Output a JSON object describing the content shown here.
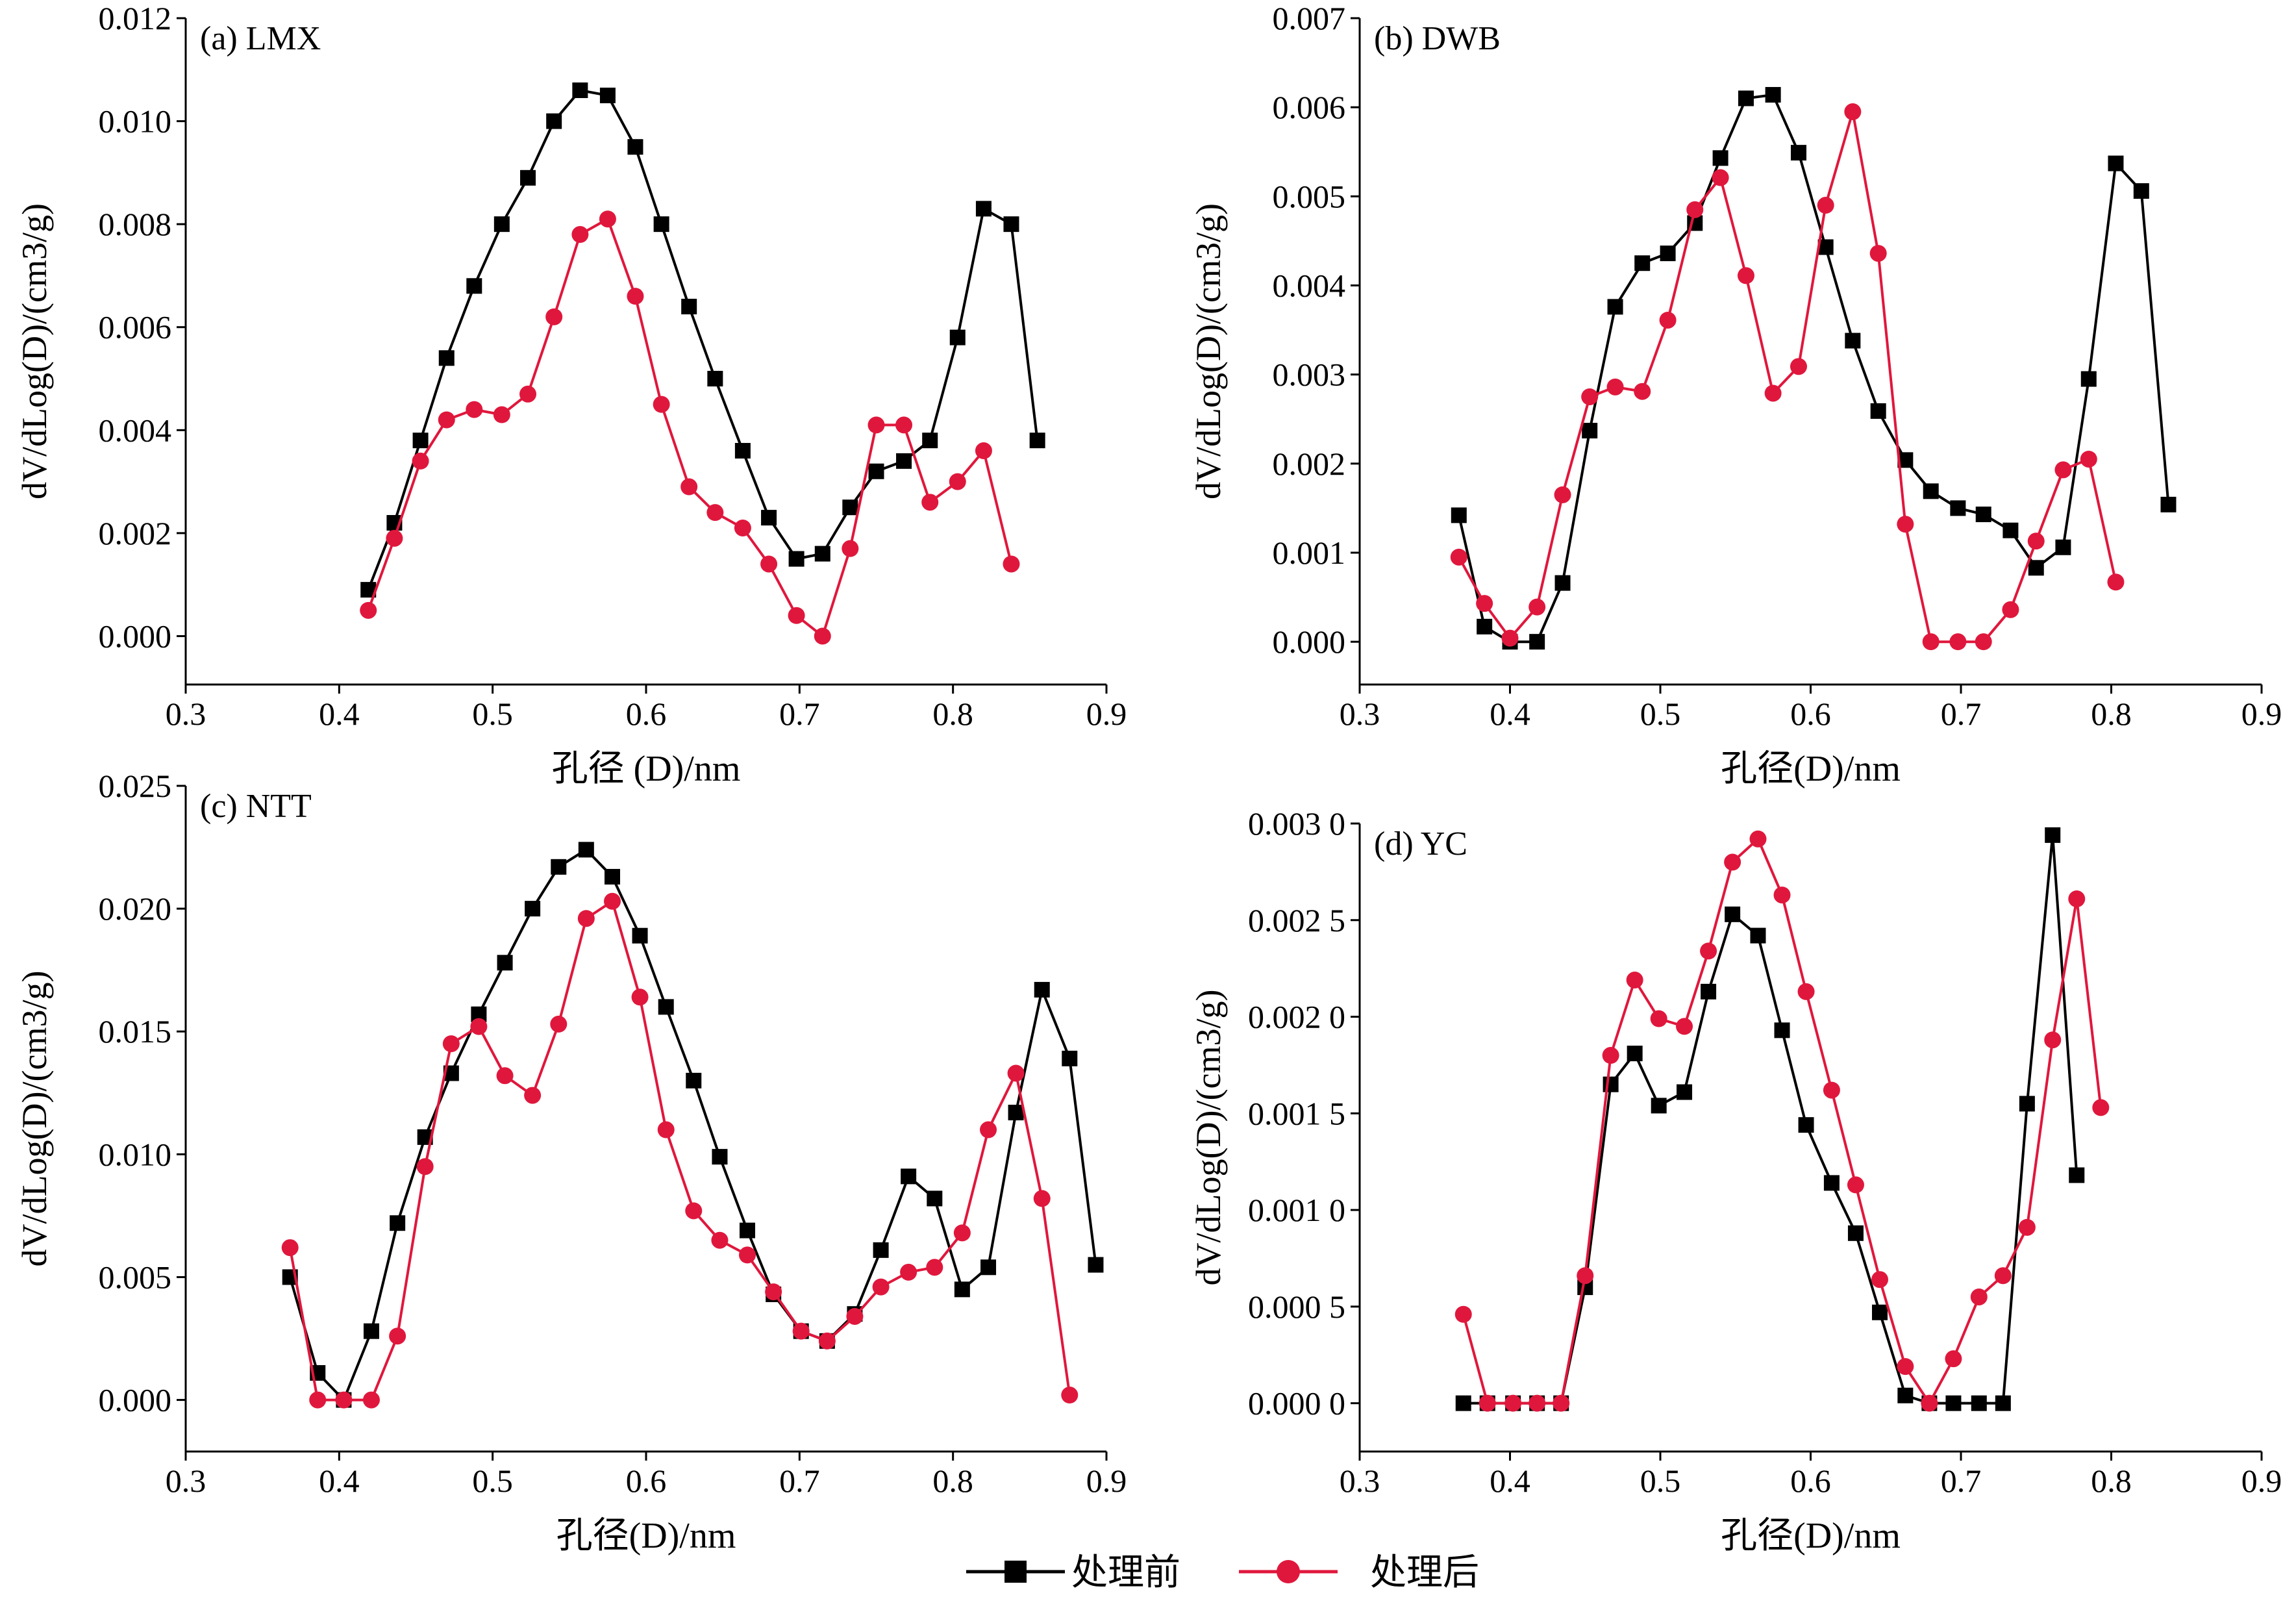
{
  "chart_data": [
    {
      "type": "line",
      "title": "(a) LMX",
      "xlabel": "孔径 (D)/nm",
      "ylabel": "dV/dLog(D)/(cm3/g)",
      "xlim": [
        0.3,
        0.9
      ],
      "ylim": [
        -0.00094,
        0.012
      ],
      "xticks": [
        "0.3",
        "0.4",
        "0.5",
        "0.6",
        "0.7",
        "0.8",
        "0.9"
      ],
      "yticks": [
        "0.000",
        "0.002",
        "0.004",
        "0.006",
        "0.008",
        "0.010",
        "0.012"
      ],
      "grid": false,
      "series": [
        {
          "name": "处理前",
          "color": "#000000",
          "marker": "square",
          "x": [
            0.419,
            0.436,
            0.453,
            0.47,
            0.488,
            0.506,
            0.523,
            0.54,
            0.557,
            0.575,
            0.593,
            0.61,
            0.628,
            0.645,
            0.663,
            0.68,
            0.698,
            0.715,
            0.733,
            0.75,
            0.768,
            0.785,
            0.803,
            0.82,
            0.838,
            0.855
          ],
          "y": [
            0.0009,
            0.0022,
            0.0038,
            0.0054,
            0.0068,
            0.008,
            0.0089,
            0.01,
            0.0106,
            0.0105,
            0.0095,
            0.008,
            0.0064,
            0.005,
            0.0036,
            0.0023,
            0.0015,
            0.0016,
            0.0025,
            0.0032,
            0.0034,
            0.0038,
            0.0058,
            0.0083,
            0.008,
            0.0038
          ]
        },
        {
          "name": "处理后",
          "color": "#e0173c",
          "marker": "circle",
          "x": [
            0.419,
            0.436,
            0.453,
            0.47,
            0.488,
            0.506,
            0.523,
            0.54,
            0.557,
            0.575,
            0.593,
            0.61,
            0.628,
            0.645,
            0.663,
            0.68,
            0.698,
            0.715,
            0.733,
            0.75,
            0.768,
            0.785,
            0.803,
            0.82,
            0.838
          ],
          "y": [
            0.0005,
            0.0019,
            0.0034,
            0.0042,
            0.0044,
            0.0043,
            0.0047,
            0.0062,
            0.0078,
            0.0081,
            0.0066,
            0.0045,
            0.0029,
            0.0024,
            0.0021,
            0.0014,
            0.0004,
            0.0,
            0.0017,
            0.0041,
            0.0041,
            0.0026,
            0.003,
            0.0036,
            0.0014
          ]
        }
      ]
    },
    {
      "type": "line",
      "title": "(b) DWB",
      "xlabel": "孔径(D)/nm",
      "ylabel": "dV/dLog(D)/(cm3/g)",
      "xlim": [
        0.3,
        0.9
      ],
      "ylim": [
        -0.00048,
        0.007
      ],
      "xticks": [
        "0.3",
        "0.4",
        "0.5",
        "0.6",
        "0.7",
        "0.8",
        "0.9"
      ],
      "yticks": [
        "0.000",
        "0.001",
        "0.002",
        "0.003",
        "0.004",
        "0.005",
        "0.006",
        "0.007"
      ],
      "grid": false,
      "series": [
        {
          "name": "处理前",
          "color": "#000000",
          "marker": "square",
          "x": [
            0.366,
            0.383,
            0.4,
            0.418,
            0.435,
            0.453,
            0.47,
            0.488,
            0.505,
            0.523,
            0.54,
            0.557,
            0.575,
            0.592,
            0.61,
            0.628,
            0.645,
            0.663,
            0.68,
            0.698,
            0.715,
            0.733,
            0.75,
            0.768,
            0.785,
            0.803,
            0.82,
            0.838
          ],
          "y": [
            0.00142,
            0.00017,
            0.0,
            0.0,
            0.00066,
            0.00237,
            0.00376,
            0.00425,
            0.00436,
            0.0047,
            0.00543,
            0.0061,
            0.00614,
            0.00549,
            0.00443,
            0.00338,
            0.00259,
            0.00204,
            0.00169,
            0.0015,
            0.00143,
            0.00125,
            0.00083,
            0.00106,
            0.00295,
            0.00537,
            0.00506,
            0.00154
          ]
        },
        {
          "name": "处理后",
          "color": "#e0173c",
          "marker": "circle",
          "x": [
            0.366,
            0.383,
            0.4,
            0.418,
            0.435,
            0.453,
            0.47,
            0.488,
            0.505,
            0.523,
            0.54,
            0.557,
            0.575,
            0.592,
            0.61,
            0.628,
            0.645,
            0.663,
            0.68,
            0.698,
            0.715,
            0.733,
            0.75,
            0.768,
            0.785,
            0.803
          ],
          "y": [
            0.00095,
            0.00043,
            4e-05,
            0.00039,
            0.00165,
            0.00275,
            0.00286,
            0.00281,
            0.00361,
            0.00485,
            0.00521,
            0.00411,
            0.00279,
            0.00309,
            0.0049,
            0.00595,
            0.00436,
            0.00132,
            0.0,
            0.0,
            0.0,
            0.00036,
            0.00113,
            0.00193,
            0.00205,
            0.00067
          ]
        }
      ]
    },
    {
      "type": "line",
      "title": "(c) NTT",
      "xlabel": "孔径(D)/nm",
      "ylabel": "dV/dLog(D)/(cm3/g)",
      "xlim": [
        0.3,
        0.9
      ],
      "ylim": [
        -0.0021,
        0.025
      ],
      "xticks": [
        "0.3",
        "0.4",
        "0.5",
        "0.6",
        "0.7",
        "0.8",
        "0.9"
      ],
      "yticks": [
        "0.000",
        "0.005",
        "0.010",
        "0.015",
        "0.020",
        "0.025"
      ],
      "grid": false,
      "series": [
        {
          "name": "处理前",
          "color": "#000000",
          "marker": "square",
          "x": [
            0.368,
            0.386,
            0.403,
            0.421,
            0.438,
            0.456,
            0.473,
            0.491,
            0.508,
            0.526,
            0.543,
            0.561,
            0.578,
            0.596,
            0.613,
            0.631,
            0.648,
            0.666,
            0.683,
            0.701,
            0.718,
            0.736,
            0.753,
            0.771,
            0.788,
            0.806,
            0.823,
            0.841,
            0.858,
            0.876,
            0.893
          ],
          "y": [
            0.005,
            0.0011,
            0.0,
            0.0028,
            0.0072,
            0.0107,
            0.0133,
            0.0157,
            0.0178,
            0.02,
            0.0217,
            0.0224,
            0.0213,
            0.0189,
            0.016,
            0.013,
            0.0099,
            0.0069,
            0.0043,
            0.0028,
            0.0024,
            0.0035,
            0.0061,
            0.0091,
            0.0082,
            0.0045,
            0.0054,
            0.0117,
            0.0167,
            0.0139,
            0.0055
          ]
        },
        {
          "name": "处理后",
          "color": "#e0173c",
          "marker": "circle",
          "x": [
            0.368,
            0.386,
            0.403,
            0.421,
            0.438,
            0.456,
            0.473,
            0.491,
            0.508,
            0.526,
            0.543,
            0.561,
            0.578,
            0.596,
            0.613,
            0.631,
            0.648,
            0.666,
            0.683,
            0.701,
            0.718,
            0.736,
            0.753,
            0.771,
            0.788,
            0.806,
            0.823,
            0.841,
            0.858,
            0.876
          ],
          "y": [
            0.0062,
            0.0,
            0.0,
            0.0,
            0.0026,
            0.0095,
            0.0145,
            0.0152,
            0.0132,
            0.0124,
            0.0153,
            0.0196,
            0.0203,
            0.0164,
            0.011,
            0.0077,
            0.0065,
            0.0059,
            0.0044,
            0.0028,
            0.0024,
            0.0034,
            0.0046,
            0.0052,
            0.0054,
            0.0068,
            0.011,
            0.0133,
            0.0082,
            0.0002
          ]
        }
      ]
    },
    {
      "type": "line",
      "title": "(d) YC",
      "xlabel": "孔径(D)/nm",
      "ylabel": "dV/dLog(D)/(cm3/g)",
      "xlim": [
        0.3,
        0.9
      ],
      "ylim": [
        -0.00025,
        0.003
      ],
      "xticks": [
        "0.3",
        "0.4",
        "0.5",
        "0.6",
        "0.7",
        "0.8",
        "0.9"
      ],
      "yticks": [
        "0.000 0",
        "0.000 5",
        "0.001 0",
        "0.001 5",
        "0.002 0",
        "0.002 5",
        "0.003 0"
      ],
      "grid": false,
      "series": [
        {
          "name": "处理前",
          "color": "#000000",
          "marker": "square",
          "x": [
            0.369,
            0.385,
            0.402,
            0.418,
            0.434,
            0.45,
            0.467,
            0.483,
            0.499,
            0.516,
            0.532,
            0.548,
            0.565,
            0.581,
            0.597,
            0.614,
            0.63,
            0.646,
            0.663,
            0.679,
            0.695,
            0.712,
            0.728,
            0.744,
            0.761,
            0.777
          ],
          "y": [
            0.0,
            0.0,
            0.0,
            0.0,
            0.0,
            0.0006,
            0.00165,
            0.00181,
            0.00154,
            0.00161,
            0.00213,
            0.00253,
            0.00242,
            0.00193,
            0.00144,
            0.00114,
            0.00088,
            0.00047,
            4e-05,
            0.0,
            0.0,
            0.0,
            0.0,
            0.00155,
            0.00294,
            0.00118
          ]
        },
        {
          "name": "处理后",
          "color": "#e0173c",
          "marker": "circle",
          "x": [
            0.369,
            0.385,
            0.402,
            0.418,
            0.434,
            0.45,
            0.467,
            0.483,
            0.499,
            0.516,
            0.532,
            0.548,
            0.565,
            0.581,
            0.597,
            0.614,
            0.63,
            0.646,
            0.663,
            0.679,
            0.695,
            0.712,
            0.728,
            0.744,
            0.761,
            0.777,
            0.793
          ],
          "y": [
            0.00046,
            0.0,
            0.0,
            0.0,
            0.0,
            0.00066,
            0.0018,
            0.00219,
            0.00199,
            0.00195,
            0.00234,
            0.0028,
            0.00292,
            0.00263,
            0.00213,
            0.00162,
            0.00113,
            0.00064,
            0.00019,
            0.0,
            0.00023,
            0.00055,
            0.00066,
            0.00091,
            0.00188,
            0.00261,
            0.00153
          ]
        }
      ]
    }
  ],
  "legend": {
    "before_label": "处理前",
    "after_label": "处理后"
  }
}
